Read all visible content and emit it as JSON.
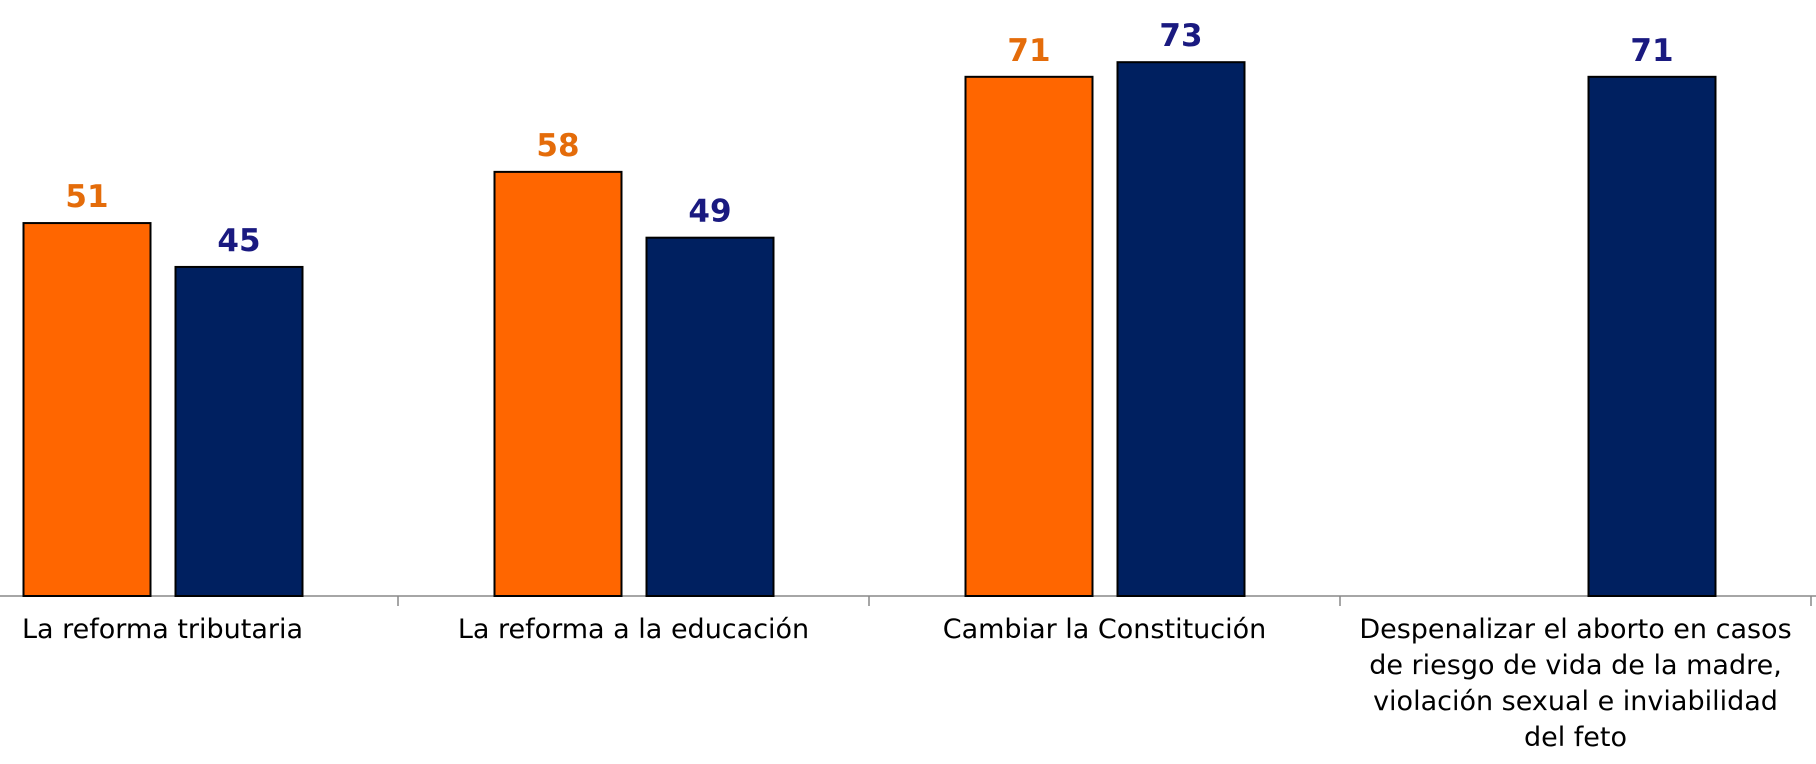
{
  "chart_data": {
    "type": "bar",
    "categories": [
      "La reforma tributaria",
      "La reforma a la educación",
      "Cambiar la Constitución",
      "Despenalizar el aborto en casos de riesgo de vida de la madre, violación sexual e inviabilidad del feto"
    ],
    "series": [
      {
        "color": "#ff6600",
        "label_color": "#e46c0a",
        "values": [
          51,
          58,
          71,
          null
        ]
      },
      {
        "color": "#002060",
        "label_color": "#1a1a80",
        "values": [
          45,
          49,
          73,
          71
        ]
      }
    ],
    "ylim": [
      0,
      80
    ]
  }
}
